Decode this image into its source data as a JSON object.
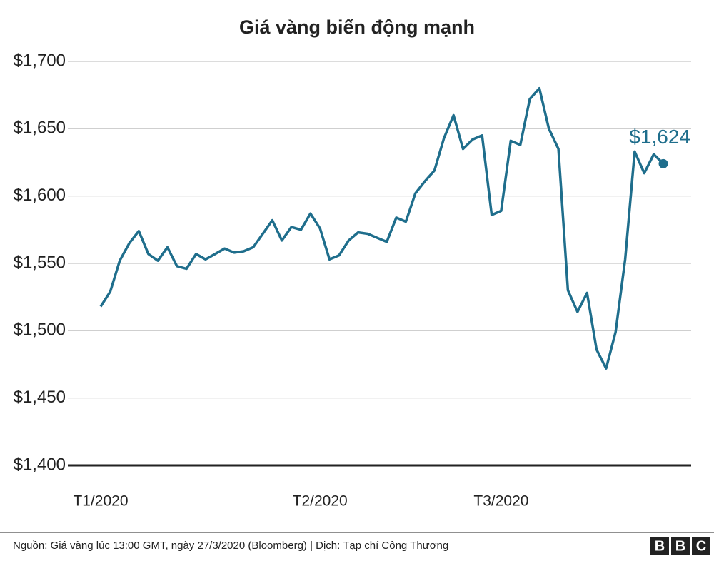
{
  "chart_data": {
    "type": "line",
    "title": "Giá vàng biến động mạnh",
    "categories": [
      "T1/2020",
      null,
      null,
      null,
      null,
      null,
      null,
      null,
      null,
      null,
      null,
      null,
      null,
      null,
      null,
      null,
      null,
      null,
      null,
      null,
      null,
      null,
      null,
      "T2/2020",
      null,
      null,
      null,
      null,
      null,
      null,
      null,
      null,
      null,
      null,
      null,
      null,
      null,
      null,
      null,
      null,
      null,
      null,
      "T3/2020",
      null,
      null,
      null,
      null,
      null,
      null,
      null,
      null,
      null,
      null,
      null,
      null,
      null,
      null,
      null,
      null,
      null
    ],
    "values": [
      1518,
      1529,
      1552,
      1565,
      1574,
      1557,
      1552,
      1562,
      1548,
      1546,
      1557,
      1553,
      1557,
      1561,
      1558,
      1559,
      1562,
      1572,
      1582,
      1567,
      1577,
      1575,
      1587,
      1576,
      1553,
      1556,
      1567,
      1573,
      1572,
      1569,
      1566,
      1584,
      1581,
      1602,
      1611,
      1619,
      1643,
      1660,
      1635,
      1642,
      1645,
      1586,
      1589,
      1641,
      1638,
      1672,
      1680,
      1650,
      1635,
      1530,
      1514,
      1528,
      1486,
      1472,
      1499,
      1553,
      1633,
      1617,
      1631,
      1624
    ],
    "value_labels": [
      null,
      null,
      null,
      null,
      null,
      null,
      null,
      null,
      null,
      null,
      null,
      null,
      null,
      null,
      null,
      null,
      null,
      null,
      null,
      null,
      null,
      null,
      null,
      null,
      null,
      null,
      null,
      null,
      null,
      null,
      null,
      null,
      null,
      null,
      null,
      null,
      null,
      null,
      null,
      null,
      null,
      null,
      null,
      null,
      null,
      null,
      null,
      null,
      null,
      null,
      null,
      null,
      null,
      null,
      null,
      null,
      null,
      null,
      null,
      "$1,624"
    ],
    "color": "#1f6e8c",
    "ylim": [
      1400,
      1700
    ],
    "yticks": [
      {
        "value": 1400,
        "label": "$1,400"
      },
      {
        "value": 1450,
        "label": "$1,450"
      },
      {
        "value": 1500,
        "label": "$1,500"
      },
      {
        "value": 1550,
        "label": "$1,550"
      },
      {
        "value": 1600,
        "label": "$1,600"
      },
      {
        "value": 1650,
        "label": "$1,650"
      },
      {
        "value": 1700,
        "label": "$1,700"
      }
    ],
    "grid": true,
    "source": "Nguồn: Giá vàng lúc 13:00 GMT, ngày 27/3/2020 (Bloomberg) | Dịch: Tạp chí Công Thương",
    "logo": [
      "B",
      "B",
      "C"
    ]
  }
}
